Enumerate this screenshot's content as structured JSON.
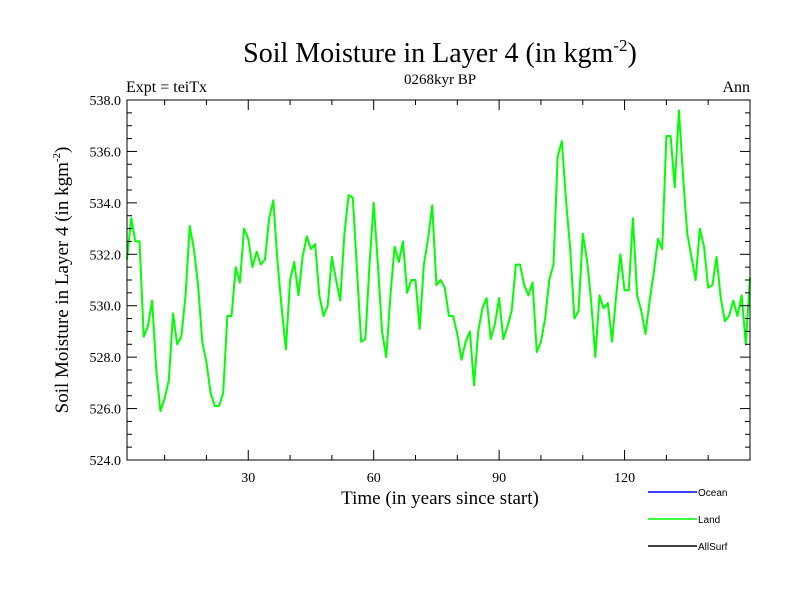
{
  "chart_data": {
    "type": "line",
    "title_main": "Soil Moisture in Layer 4 (in kgm",
    "title_sup": "-2",
    "title_close": ")",
    "subtitle": "0268kyr BP",
    "left_label": "Expt = teiTx",
    "right_label": "Ann",
    "xlabel": "Time (in years since start)",
    "ylabel_main": "Soil Moisture in Layer 4 (in kgm",
    "ylabel_sup": "-2",
    "ylabel_close": ")",
    "xlim": [
      1,
      150
    ],
    "ylim": [
      524.0,
      538.0
    ],
    "x_ticks": [
      30,
      60,
      90,
      120
    ],
    "x_tick_labels": [
      "30",
      "60",
      "90",
      "120"
    ],
    "y_ticks": [
      524,
      526,
      528,
      530,
      532,
      534,
      536,
      538
    ],
    "y_tick_labels": [
      "524.0",
      "526.0",
      "528.0",
      "530.0",
      "532.0",
      "534.0",
      "536.0",
      "538.0"
    ],
    "legend": [
      {
        "name": "Ocean",
        "color": "#0000ff"
      },
      {
        "name": "Land",
        "color": "#00ff00"
      },
      {
        "name": "AllSurf",
        "color": "#000000"
      }
    ],
    "series": [
      {
        "name": "Land",
        "color": "#00ff00",
        "x_start": 1,
        "x_step": 1,
        "values": [
          531.8,
          533.4,
          532.5,
          532.5,
          528.8,
          529.2,
          530.2,
          527.5,
          525.9,
          526.4,
          527.1,
          529.7,
          528.5,
          528.8,
          530.4,
          533.1,
          532.2,
          530.8,
          528.6,
          527.8,
          526.6,
          526.1,
          526.1,
          526.6,
          529.6,
          529.6,
          531.5,
          530.9,
          533.0,
          532.6,
          531.5,
          532.1,
          531.6,
          531.8,
          533.4,
          534.1,
          531.7,
          529.9,
          528.3,
          531.0,
          531.7,
          530.4,
          531.9,
          532.7,
          532.2,
          532.4,
          530.4,
          529.6,
          530.0,
          531.9,
          531.0,
          530.2,
          532.8,
          534.3,
          534.2,
          531.4,
          528.6,
          528.7,
          531.6,
          534.0,
          531.6,
          529.0,
          528.0,
          530.4,
          532.3,
          531.7,
          532.5,
          530.5,
          531.0,
          531.0,
          529.1,
          531.6,
          532.6,
          533.9,
          530.8,
          531.0,
          530.7,
          529.6,
          529.6,
          528.9,
          527.9,
          528.6,
          529.0,
          526.9,
          529.0,
          529.9,
          530.3,
          528.7,
          529.3,
          530.3,
          528.7,
          529.2,
          529.8,
          531.6,
          531.6,
          530.8,
          530.4,
          530.9,
          528.2,
          528.6,
          529.5,
          531.0,
          531.6,
          535.8,
          536.4,
          534.1,
          532.2,
          529.5,
          529.8,
          532.8,
          531.8,
          530.2,
          528.0,
          530.4,
          529.9,
          530.1,
          528.6,
          530.4,
          532.0,
          530.6,
          530.6,
          533.4,
          530.4,
          529.8,
          528.9,
          530.2,
          531.3,
          532.6,
          532.2,
          536.6,
          536.6,
          534.6,
          537.6,
          535.0,
          532.8,
          531.9,
          531.0,
          533.0,
          532.3,
          530.7,
          530.8,
          531.9,
          530.3,
          529.4,
          529.6,
          530.2,
          529.6,
          530.4,
          528.5,
          531.1
        ]
      }
    ]
  }
}
